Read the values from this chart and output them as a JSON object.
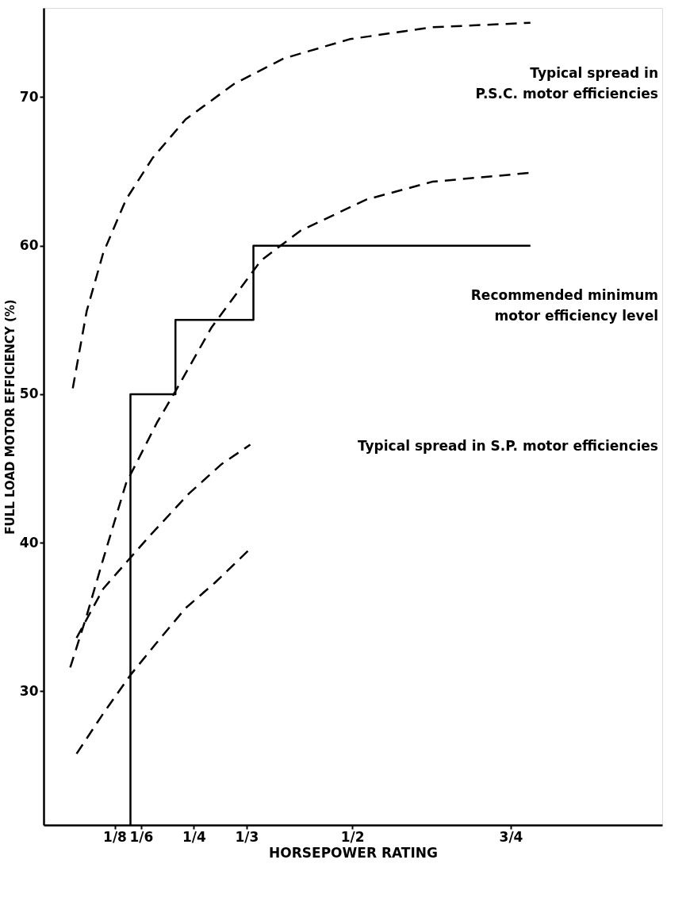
{
  "chart_data": {
    "type": "line",
    "xlabel": "HORSEPOWER RATING",
    "ylabel": "FULL LOAD MOTOR EFFICIENCY (%)",
    "xlim": [
      0.013,
      0.989
    ],
    "ylim": [
      21,
      76
    ],
    "xticks": [
      {
        "value": 0.125,
        "label": "1/8"
      },
      {
        "value": 0.1667,
        "label": "1/6"
      },
      {
        "value": 0.25,
        "label": "1/4"
      },
      {
        "value": 0.3333,
        "label": "1/3"
      },
      {
        "value": 0.5,
        "label": "1/2"
      },
      {
        "value": 0.75,
        "label": "3/4"
      }
    ],
    "yticks": [
      30,
      40,
      50,
      60,
      70
    ],
    "grid": false,
    "line_style": "dashed",
    "series": [
      {
        "color": "#000000",
        "x": [
          0.059,
          0.081,
          0.107,
          0.143,
          0.185,
          0.237,
          0.314,
          0.392,
          0.496,
          0.626,
          0.781
        ],
        "values": [
          50.4,
          55.6,
          59.5,
          63.1,
          65.9,
          68.5,
          70.9,
          72.6,
          73.9,
          74.7,
          75.0
        ]
      },
      {
        "color": "#000000",
        "x": [
          0.055,
          0.081,
          0.107,
          0.143,
          0.192,
          0.221,
          0.278,
          0.356,
          0.418,
          0.522,
          0.626,
          0.781
        ],
        "values": [
          31.6,
          35.1,
          38.9,
          44.0,
          48.1,
          50.2,
          54.5,
          59.0,
          61.0,
          63.1,
          64.3,
          64.9
        ]
      },
      {
        "color": "#000000",
        "x": [
          0.065,
          0.107,
          0.148,
          0.179,
          0.242,
          0.294,
          0.339
        ],
        "values": [
          33.6,
          36.9,
          38.9,
          40.4,
          43.3,
          45.3,
          46.6
        ]
      },
      {
        "color": "#000000",
        "x": [
          0.065,
          0.107,
          0.15,
          0.19,
          0.237,
          0.283,
          0.339
        ],
        "values": [
          25.8,
          28.5,
          31.1,
          33.2,
          35.6,
          37.3,
          39.6
        ]
      },
      {
        "type": "step",
        "line_style": "solid",
        "color": "#000000",
        "x": [
          0.15,
          0.15,
          0.221,
          0.344,
          0.781
        ],
        "values": [
          21,
          50,
          55,
          60,
          60
        ]
      }
    ],
    "annotations": [
      "Typical spread in\nP.S.C. motor efficiencies",
      "Recommended minimum\nmotor efficiency level",
      "Typical spread in S.P. motor efficiencies"
    ]
  }
}
